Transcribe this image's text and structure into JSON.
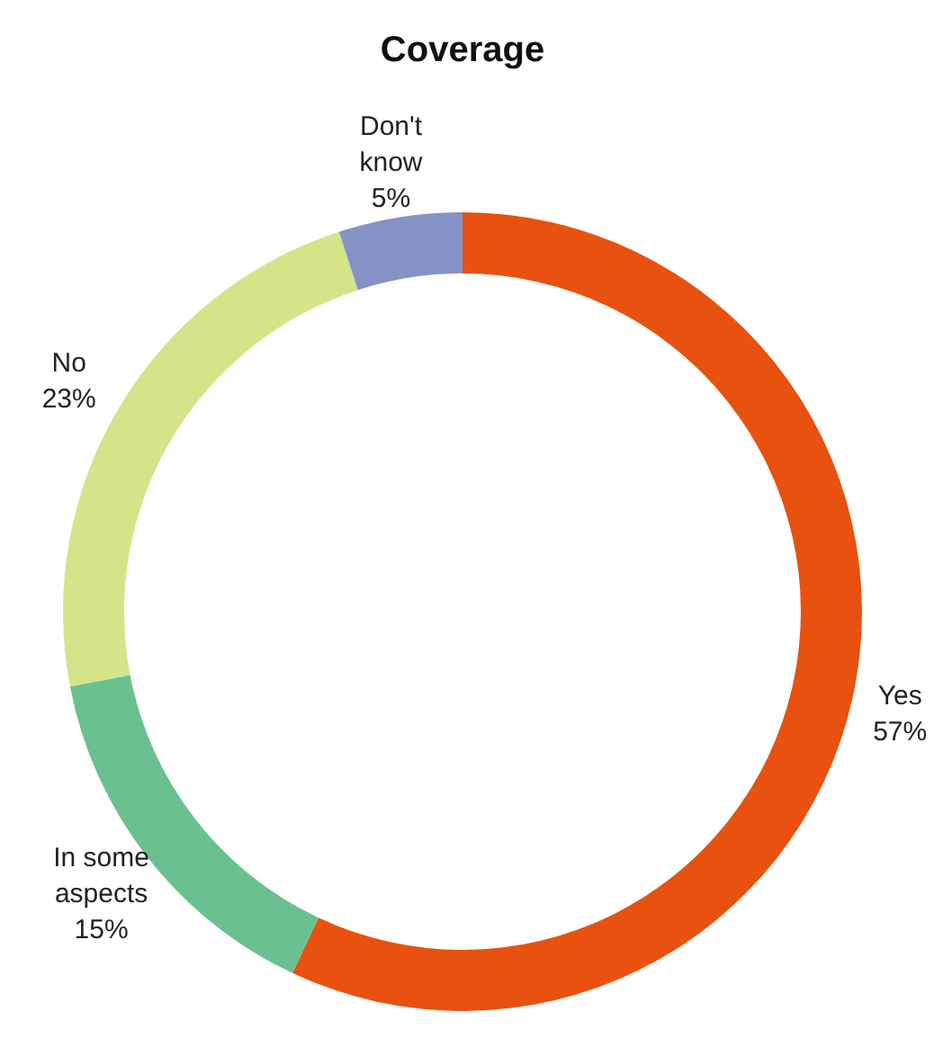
{
  "chart_data": {
    "type": "donut",
    "title": "Coverage",
    "categories": [
      "Yes",
      "In some aspects",
      "No",
      "Don't know"
    ],
    "values": [
      57,
      15,
      23,
      5
    ],
    "colors": [
      "#e8510f",
      "#6bc08f",
      "#d4e489",
      "#8592c6"
    ],
    "value_labels": [
      "57%",
      "15%",
      "23%",
      "5%"
    ]
  }
}
